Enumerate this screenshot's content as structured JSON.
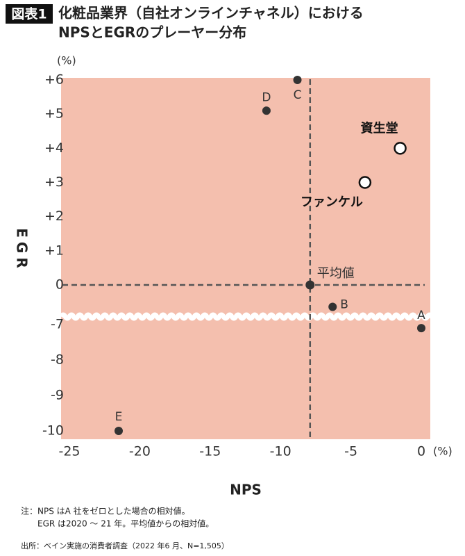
{
  "chart_data": {
    "type": "scatter",
    "badge": "図表1",
    "title_lines": [
      "化粧品業界（自社オンラインチャネル）における",
      "NPSとEGRのプレーヤー分布"
    ],
    "y_unit": "(%)",
    "x_unit": "(%)",
    "x_label": "NPS",
    "y_label": "EGR",
    "xlim": [
      -25,
      0
    ],
    "xticks": [
      -25,
      -20,
      -15,
      -10,
      -5,
      0
    ],
    "ylim": [
      -10,
      6
    ],
    "y_break": [
      -7,
      0
    ],
    "yticks": [
      {
        "value": 6,
        "label": "+6"
      },
      {
        "value": 5,
        "label": "+5"
      },
      {
        "value": 4,
        "label": "+4"
      },
      {
        "value": 3,
        "label": "+3"
      },
      {
        "value": 2,
        "label": "+2"
      },
      {
        "value": 1,
        "label": "+1"
      },
      0,
      -7,
      -8,
      -9,
      -10
    ],
    "background_color": "#f4bfae",
    "point_color": "#333333",
    "average": {
      "label": "平均値",
      "x": -7.9,
      "y": 0
    },
    "points": [
      {
        "label": "C",
        "x": -8.8,
        "y": 6,
        "highlight": false
      },
      {
        "label": "D",
        "x": -11,
        "y": 5.1,
        "highlight": false
      },
      {
        "label": "資生堂",
        "x": -1.5,
        "y": 4,
        "highlight": true
      },
      {
        "label": "ファンケル",
        "x": -4,
        "y": 3,
        "highlight": true
      },
      {
        "label": "B",
        "x": -6.3,
        "y": -6.5,
        "highlight": false
      },
      {
        "label": "A",
        "x": 0,
        "y": -7.1,
        "highlight": false
      },
      {
        "label": "E",
        "x": -21.5,
        "y": -10,
        "highlight": false
      }
    ],
    "notes": [
      "注：NPS はA 社をゼロとした場合の相対値。",
      "EGR は2020 ～ 21 年。平均値からの相対値。"
    ],
    "source": "出所：ベイン実施の消費者調査（2022 年6 月、N=1,505）"
  }
}
